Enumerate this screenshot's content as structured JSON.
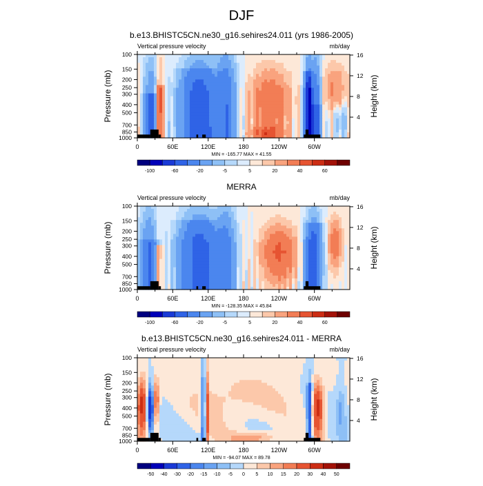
{
  "page_title": "DJF",
  "colors": {
    "scale": [
      "#00007f",
      "#0000b8",
      "#1a3ad6",
      "#2f63e6",
      "#4b86ee",
      "#6aa3f2",
      "#8ec0f6",
      "#b5d8fb",
      "#dcecfd",
      "#fde8d8",
      "#fcc8aa",
      "#f9a37e",
      "#f27d55",
      "#e65432",
      "#cc2d14",
      "#a31208",
      "#6e0000"
    ]
  },
  "chart_data": [
    {
      "type": "heatmap",
      "title": "b.e13.BHISTC5CN.ne30_g16.sehires24.011 (yrs 1986-2005)",
      "left_label": "Vertical pressure velocity",
      "right_label": "mb/day",
      "ylabel": "Pressure (mb)",
      "y2label": "Height (km)",
      "x_ticks": [
        "0",
        "60E",
        "120E",
        "180",
        "120W",
        "60W"
      ],
      "y_ticks": [
        "100",
        "150",
        "200",
        "250",
        "300",
        "400",
        "500",
        "700",
        "850",
        "1000"
      ],
      "y2_ticks": [
        "16",
        "12",
        "8",
        "4"
      ],
      "stats": "MIN = -165.77  MAX =  41.55",
      "colorbar_labels": [
        "-100",
        "-60",
        "-20",
        "-5",
        "5",
        "20",
        "40",
        "60"
      ]
    },
    {
      "type": "heatmap",
      "title": "MERRA",
      "left_label": "Vertical pressure velocity",
      "right_label": "mb/day",
      "ylabel": "Pressure (mb)",
      "y2label": "Height (km)",
      "x_ticks": [
        "0",
        "60E",
        "120E",
        "180",
        "120W",
        "60W"
      ],
      "y_ticks": [
        "100",
        "150",
        "200",
        "250",
        "300",
        "400",
        "500",
        "700",
        "850",
        "1000"
      ],
      "y2_ticks": [
        "16",
        "12",
        "8",
        "4"
      ],
      "stats": "MIN = -128.35  MAX =  45.84",
      "colorbar_labels": [
        "-100",
        "-60",
        "-20",
        "-5",
        "5",
        "20",
        "40",
        "60"
      ]
    },
    {
      "type": "heatmap",
      "title": "b.e13.BHISTC5CN.ne30_g16.sehires24.011 - MERRA",
      "left_label": "Vertical pressure velocity",
      "right_label": "mb/day",
      "ylabel": "Pressure (mb)",
      "y2label": "Height (km)",
      "x_ticks": [
        "0",
        "60E",
        "120E",
        "180",
        "120W",
        "60W"
      ],
      "y_ticks": [
        "100",
        "150",
        "200",
        "250",
        "300",
        "400",
        "500",
        "700",
        "850",
        "1000"
      ],
      "y2_ticks": [
        "16",
        "12",
        "8",
        "4"
      ],
      "stats": "MIN = -94.07  MAX =  89.78",
      "colorbar_labels": [
        "-50",
        "-40",
        "-30",
        "-20",
        "-15",
        "-10",
        "-5",
        "0",
        "5",
        "10",
        "15",
        "20",
        "30",
        "40",
        "50"
      ]
    }
  ]
}
